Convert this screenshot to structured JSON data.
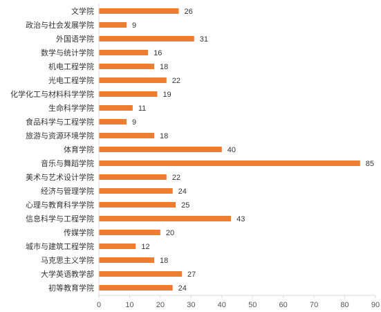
{
  "chart_data": {
    "type": "bar",
    "orientation": "horizontal",
    "categories": [
      "文学院",
      "政治与社会发展学院",
      "外国语学院",
      "数学与统计学院",
      "机电工程学院",
      "光电工程学院",
      "化学化工与材料科学学院",
      "生命科学学院",
      "食品科学与工程学院",
      "旅游与资源环境学院",
      "体育学院",
      "音乐与舞蹈学院",
      "美术与艺术设计学院",
      "经济与管理学院",
      "心理与教育科学学院",
      "信息科学与工程学院",
      "传媒学院",
      "城市与建筑工程学院",
      "马克思主义学院",
      "大学英语教学部",
      "初等教育学院"
    ],
    "values": [
      26,
      9,
      31,
      16,
      18,
      22,
      19,
      11,
      9,
      18,
      40,
      85,
      22,
      24,
      25,
      43,
      20,
      12,
      18,
      27,
      24
    ],
    "value_labels": [
      "26",
      "9",
      "31",
      "16",
      "18",
      "22",
      "19",
      "11",
      "9",
      "18",
      "40",
      "85",
      "22",
      "24",
      "25",
      "43",
      "20",
      "12",
      "18",
      "27",
      "24"
    ],
    "x_ticks": [
      "0",
      "10",
      "20",
      "30",
      "40",
      "50",
      "60",
      "70",
      "80",
      "90"
    ],
    "xlim": [
      0,
      90
    ],
    "grid": false,
    "colors": {
      "bar": "#ED7D31",
      "axis": "#D9D9D9"
    }
  }
}
